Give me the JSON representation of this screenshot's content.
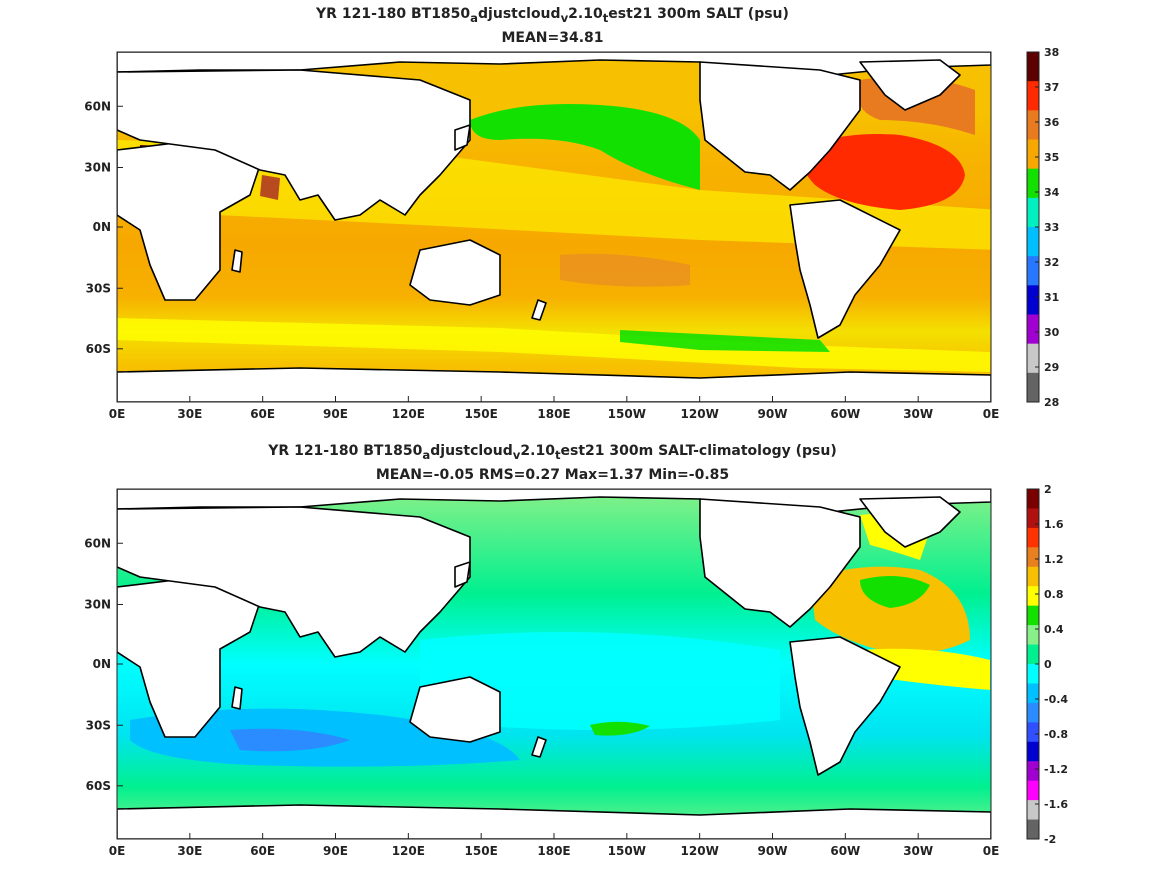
{
  "chart_data": [
    {
      "type": "heatmap",
      "title_parts": {
        "a": "YR 121-180 BT1850",
        "b": "a",
        "c": "djustcloud",
        "d": "v",
        "e": "2.10",
        "f": "t",
        "g": "est21 300m SALT (psu)"
      },
      "subtitle": "MEAN=34.81",
      "x_ticks": [
        "0E",
        "30E",
        "60E",
        "90E",
        "120E",
        "150E",
        "180E",
        "150W",
        "120W",
        "90W",
        "60W",
        "30W",
        "0E"
      ],
      "y_ticks": [
        "60N",
        "30N",
        "0N",
        "30S",
        "60S"
      ],
      "colorbar": {
        "ticks": [
          "38",
          "37",
          "36",
          "35",
          "34",
          "33",
          "32",
          "31",
          "30",
          "29",
          "28"
        ],
        "colors": [
          "#5c0000",
          "#ff2a00",
          "#e87a20",
          "#f7a800",
          "#12e000",
          "#00f0c0",
          "#00bfff",
          "#2878ff",
          "#0000d0",
          "#a000d0",
          "#c8c8c8",
          "#646464"
        ]
      }
    },
    {
      "type": "heatmap",
      "title_parts": {
        "a": "YR 121-180 BT1850",
        "b": "a",
        "c": "djustcloud",
        "d": "v",
        "e": "2.10",
        "f": "t",
        "g": "est21 300m SALT-climatology (psu)"
      },
      "subtitle": "MEAN=-0.05   RMS=0.27   Max=1.37   Min=-0.85",
      "x_ticks": [
        "0E",
        "30E",
        "60E",
        "90E",
        "120E",
        "150E",
        "180E",
        "150W",
        "120W",
        "90W",
        "60W",
        "30W",
        "0E"
      ],
      "y_ticks": [
        "60N",
        "30N",
        "0N",
        "30S",
        "60S"
      ],
      "colorbar": {
        "ticks": [
          "2",
          "1.6",
          "1.2",
          "0.8",
          "0.4",
          "0",
          "-0.4",
          "-0.8",
          "-1.2",
          "-1.6",
          "-2"
        ],
        "colors": [
          "#7a0000",
          "#b01010",
          "#ff3300",
          "#e88020",
          "#f7c000",
          "#ffff00",
          "#12e000",
          "#88f088",
          "#00f090",
          "#00ffff",
          "#00c0ff",
          "#2a8cff",
          "#3050ff",
          "#0000d0",
          "#a000d0",
          "#ff00ff",
          "#c8c8c8",
          "#646464"
        ]
      }
    }
  ]
}
